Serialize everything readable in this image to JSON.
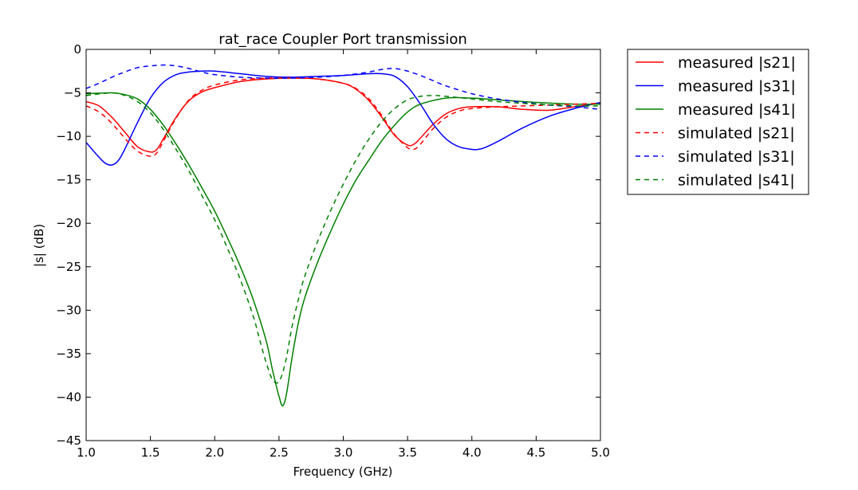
{
  "chart_data": {
    "type": "line",
    "title": "rat_race Coupler Port transmission",
    "xlabel": "Frequency (GHz)",
    "ylabel": "|s| (dB)",
    "xlim": [
      1.0,
      5.0
    ],
    "ylim": [
      -45,
      0
    ],
    "xticks": [
      1.0,
      1.5,
      2.0,
      2.5,
      3.0,
      3.5,
      4.0,
      4.5,
      5.0
    ],
    "xtick_labels": [
      "1.0",
      "1.5",
      "2.0",
      "2.5",
      "3.0",
      "3.5",
      "4.0",
      "4.5",
      "5.0"
    ],
    "yticks": [
      0,
      -5,
      -10,
      -15,
      -20,
      -25,
      -30,
      -35,
      -40,
      -45
    ],
    "ytick_labels": [
      "0",
      "−5",
      "−10",
      "−15",
      "−20",
      "−25",
      "−30",
      "−35",
      "−40",
      "−45"
    ],
    "grid": false,
    "legend_position": "outside-right",
    "series": [
      {
        "name": "measured |s21|",
        "color": "#ff0000",
        "style": "solid",
        "x": [
          1.0,
          1.1,
          1.2,
          1.3,
          1.4,
          1.5,
          1.55,
          1.6,
          1.7,
          1.8,
          1.9,
          2.0,
          2.2,
          2.4,
          2.6,
          2.8,
          3.0,
          3.1,
          3.2,
          3.3,
          3.4,
          3.5,
          3.55,
          3.6,
          3.7,
          3.8,
          3.9,
          4.0,
          4.2,
          4.4,
          4.6,
          4.8,
          5.0
        ],
        "y": [
          -6.0,
          -6.5,
          -7.8,
          -9.5,
          -11.2,
          -11.8,
          -11.5,
          -10.3,
          -7.8,
          -5.9,
          -4.9,
          -4.4,
          -3.7,
          -3.4,
          -3.3,
          -3.4,
          -3.9,
          -4.6,
          -5.9,
          -7.8,
          -9.9,
          -11.0,
          -10.9,
          -10.2,
          -8.6,
          -7.4,
          -6.8,
          -6.6,
          -6.6,
          -6.9,
          -7.0,
          -6.6,
          -6.2
        ]
      },
      {
        "name": "measured |s31|",
        "color": "#0000ff",
        "style": "solid",
        "x": [
          1.0,
          1.1,
          1.15,
          1.2,
          1.25,
          1.3,
          1.4,
          1.5,
          1.6,
          1.7,
          1.8,
          1.9,
          2.0,
          2.2,
          2.4,
          2.6,
          2.8,
          3.0,
          3.2,
          3.3,
          3.4,
          3.5,
          3.6,
          3.7,
          3.8,
          3.9,
          4.0,
          4.05,
          4.1,
          4.2,
          4.4,
          4.6,
          4.8,
          5.0
        ],
        "y": [
          -10.7,
          -12.4,
          -13.1,
          -13.3,
          -12.8,
          -11.5,
          -8.4,
          -5.6,
          -3.8,
          -2.9,
          -2.6,
          -2.5,
          -2.5,
          -2.8,
          -3.1,
          -3.2,
          -3.1,
          -3.0,
          -2.8,
          -2.8,
          -3.1,
          -4.3,
          -6.3,
          -8.6,
          -10.3,
          -11.2,
          -11.5,
          -11.5,
          -11.3,
          -10.6,
          -9.0,
          -7.7,
          -6.8,
          -6.1
        ]
      },
      {
        "name": "measured |s41|",
        "color": "#008000",
        "style": "solid",
        "x": [
          1.0,
          1.2,
          1.3,
          1.4,
          1.5,
          1.6,
          1.7,
          1.8,
          1.9,
          2.0,
          2.1,
          2.2,
          2.3,
          2.4,
          2.45,
          2.5,
          2.53,
          2.56,
          2.6,
          2.65,
          2.7,
          2.8,
          2.9,
          3.0,
          3.1,
          3.2,
          3.3,
          3.4,
          3.5,
          3.6,
          3.8,
          4.0,
          4.2,
          4.5,
          4.8,
          5.0
        ],
        "y": [
          -5.1,
          -5.0,
          -5.2,
          -5.7,
          -6.9,
          -8.7,
          -10.9,
          -13.3,
          -15.9,
          -18.6,
          -21.7,
          -25.0,
          -28.8,
          -33.5,
          -36.9,
          -39.9,
          -41.0,
          -39.5,
          -35.6,
          -31.5,
          -28.6,
          -24.5,
          -21.0,
          -17.8,
          -15.0,
          -12.7,
          -10.5,
          -8.7,
          -7.2,
          -6.3,
          -5.6,
          -5.6,
          -5.8,
          -6.1,
          -6.3,
          -6.3
        ]
      },
      {
        "name": "simulated |s21|",
        "color": "#ff0000",
        "style": "dashed",
        "x": [
          1.0,
          1.1,
          1.2,
          1.3,
          1.4,
          1.5,
          1.55,
          1.6,
          1.7,
          1.8,
          1.9,
          2.0,
          2.2,
          2.4,
          2.6,
          2.8,
          3.0,
          3.1,
          3.2,
          3.3,
          3.4,
          3.5,
          3.55,
          3.6,
          3.7,
          3.8,
          3.9,
          4.0,
          4.2,
          4.4,
          4.6,
          4.8,
          5.0
        ],
        "y": [
          -6.5,
          -7.2,
          -8.5,
          -10.2,
          -11.7,
          -12.3,
          -11.9,
          -10.6,
          -7.9,
          -5.8,
          -4.7,
          -4.1,
          -3.5,
          -3.3,
          -3.3,
          -3.4,
          -3.9,
          -4.5,
          -5.7,
          -7.6,
          -9.8,
          -11.3,
          -11.5,
          -10.9,
          -9.1,
          -7.8,
          -7.1,
          -6.8,
          -6.6,
          -6.5,
          -6.4,
          -6.3,
          -6.2
        ]
      },
      {
        "name": "simulated |s31|",
        "color": "#0000ff",
        "style": "dashed",
        "x": [
          1.0,
          1.1,
          1.2,
          1.3,
          1.4,
          1.5,
          1.6,
          1.7,
          1.8,
          1.9,
          2.0,
          2.2,
          2.4,
          2.6,
          2.8,
          3.0,
          3.2,
          3.3,
          3.4,
          3.5,
          3.6,
          3.7,
          3.8,
          4.0,
          4.2,
          4.4,
          4.6,
          4.8,
          5.0
        ],
        "y": [
          -4.5,
          -3.9,
          -3.2,
          -2.6,
          -2.1,
          -1.9,
          -1.8,
          -1.9,
          -2.2,
          -2.6,
          -2.9,
          -3.2,
          -3.3,
          -3.3,
          -3.2,
          -3.0,
          -2.6,
          -2.3,
          -2.2,
          -2.5,
          -3.0,
          -3.6,
          -4.2,
          -5.1,
          -5.7,
          -6.1,
          -6.4,
          -6.6,
          -6.9
        ]
      },
      {
        "name": "simulated |s41|",
        "color": "#008000",
        "style": "dashed",
        "x": [
          1.0,
          1.2,
          1.3,
          1.4,
          1.5,
          1.6,
          1.7,
          1.8,
          1.9,
          2.0,
          2.1,
          2.2,
          2.3,
          2.35,
          2.4,
          2.45,
          2.5,
          2.55,
          2.6,
          2.65,
          2.7,
          2.8,
          2.9,
          3.0,
          3.1,
          3.2,
          3.3,
          3.4,
          3.5,
          3.6,
          3.7,
          3.8,
          4.0,
          4.2,
          4.5,
          4.8,
          5.0
        ],
        "y": [
          -5.3,
          -5.0,
          -5.3,
          -6.0,
          -7.3,
          -9.2,
          -11.5,
          -14.0,
          -16.8,
          -19.6,
          -22.9,
          -26.5,
          -30.7,
          -33.4,
          -36.0,
          -38.0,
          -38.2,
          -36.0,
          -32.0,
          -28.8,
          -26.1,
          -22.1,
          -18.6,
          -15.5,
          -12.7,
          -10.3,
          -8.3,
          -6.8,
          -5.8,
          -5.4,
          -5.3,
          -5.4,
          -5.7,
          -6.0,
          -6.3,
          -6.5,
          -6.5
        ]
      }
    ]
  }
}
